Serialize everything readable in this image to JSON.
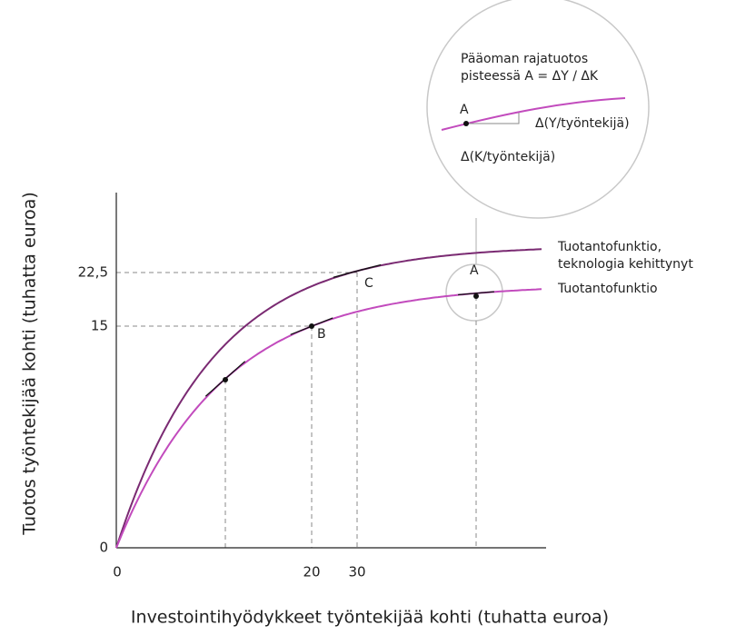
{
  "axes": {
    "y_title": "Tuotos työntekijää kohti (tuhatta euroa)",
    "x_title": "Investointihyödykkeet työntekijää kohti (tuhatta euroa)",
    "x_ticks": [
      "0",
      "20",
      "30"
    ],
    "y_ticks": [
      "0",
      "15",
      "22,5"
    ]
  },
  "curves": [
    {
      "label": "Tuotantofunktio, teknologia kehittynyt"
    },
    {
      "label": "Tuotantofunktio"
    }
  ],
  "points": [
    "A",
    "B",
    "C"
  ],
  "inset": {
    "title": "Pääoman rajatuotos pisteessä A = ΔY / ΔK",
    "point": "A",
    "dy_label": "Δ(Y/työntekijä)",
    "dx_label": "Δ(K/työntekijä)"
  }
}
